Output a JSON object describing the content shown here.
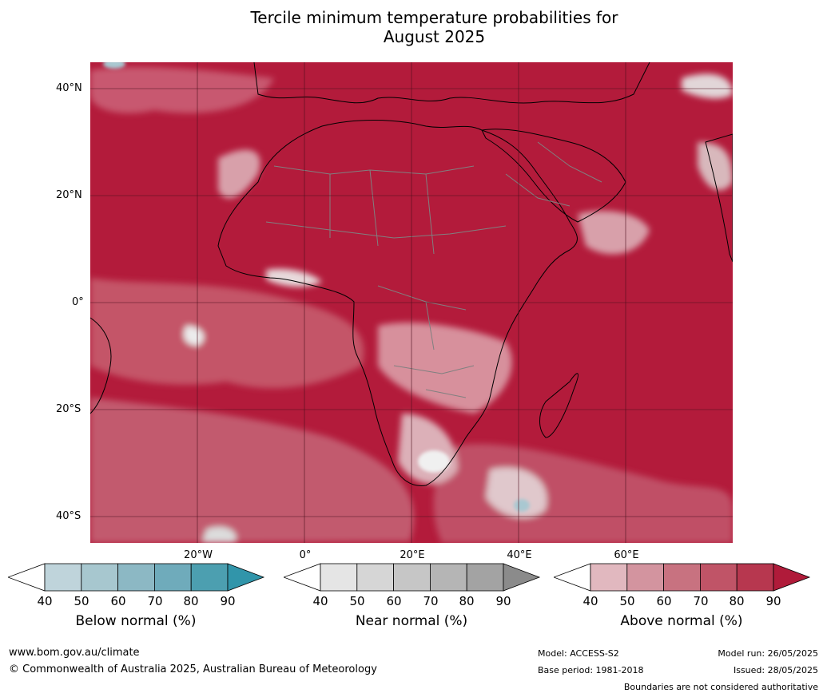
{
  "title_line1": "Tercile minimum temperature probabilities for",
  "title_line2": "August 2025",
  "map": {
    "lat_labels": [
      "40°N",
      "20°N",
      "0°",
      "20°S",
      "40°S"
    ],
    "lon_labels": [
      "20°W",
      "0°",
      "20°E",
      "40°E",
      "60°E"
    ],
    "colors": {
      "ocean_base": "#b31b3b",
      "land_base": "#b72b44",
      "coast_line": "#000000",
      "border_line": "#808080"
    }
  },
  "legends": [
    {
      "title": "Below normal (%)",
      "ticks": [
        "40",
        "50",
        "60",
        "70",
        "80",
        "90"
      ],
      "colors": [
        "#ffffff",
        "#bfd4db",
        "#a7c7cf",
        "#8cb8c4",
        "#6fabbb",
        "#4c9fb0",
        "#3195aa"
      ]
    },
    {
      "title": "Near normal (%)",
      "ticks": [
        "40",
        "50",
        "60",
        "70",
        "80",
        "90"
      ],
      "colors": [
        "#ffffff",
        "#e5e5e5",
        "#d6d6d6",
        "#c6c6c6",
        "#b5b5b5",
        "#a3a3a3",
        "#8b8b8b"
      ]
    },
    {
      "title": "Above normal (%)",
      "ticks": [
        "40",
        "50",
        "60",
        "70",
        "80",
        "90"
      ],
      "colors": [
        "#ffffff",
        "#e1b8bf",
        "#d3949f",
        "#c87280",
        "#c05467",
        "#b7374f",
        "#b01b3a"
      ]
    }
  ],
  "footer": {
    "website": "www.bom.gov.au/climate",
    "copyright": "© Commonwealth of Australia 2025, Australian Bureau of Meteorology",
    "model": "Model: ACCESS-S2",
    "base_period": "Base period: 1981-2018",
    "model_run": "Model run: 26/05/2025",
    "issued": "Issued: 28/05/2025",
    "boundaries": "Boundaries are not considered authoritative"
  }
}
